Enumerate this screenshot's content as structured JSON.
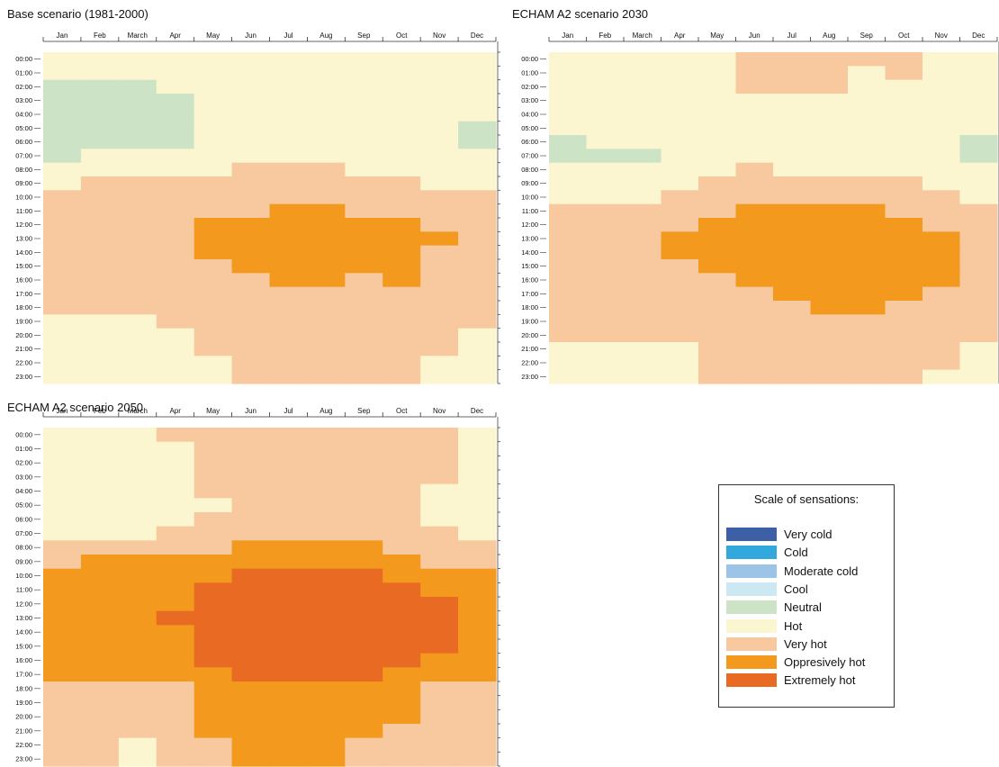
{
  "chart_data": [
    {
      "type": "heatmap",
      "title": "Base scenario (1981-2000)",
      "x_labels": [
        "Jan",
        "Feb",
        "March",
        "Apr",
        "May",
        "Jun",
        "Jul",
        "Aug",
        "Sep",
        "Oct",
        "Nov",
        "Dec"
      ],
      "y_labels": [
        "00:00",
        "01:00",
        "02:00",
        "03:00",
        "04:00",
        "05:00",
        "06:00",
        "07:00",
        "08:00",
        "09:00",
        "10:00",
        "11:00",
        "12:00",
        "13:00",
        "14:00",
        "15:00",
        "16:00",
        "17:00",
        "18:00",
        "19:00",
        "20:00",
        "21:00",
        "22:00",
        "23:00"
      ],
      "legend_ref": "legend.items",
      "grid": [
        [
          5,
          5,
          5,
          5,
          5,
          5,
          5,
          5,
          5,
          5,
          5,
          5
        ],
        [
          5,
          5,
          5,
          5,
          5,
          5,
          5,
          5,
          5,
          5,
          5,
          5
        ],
        [
          4,
          4,
          4,
          5,
          5,
          5,
          5,
          5,
          5,
          5,
          5,
          5
        ],
        [
          4,
          4,
          4,
          4,
          5,
          5,
          5,
          5,
          5,
          5,
          5,
          5
        ],
        [
          4,
          4,
          4,
          4,
          5,
          5,
          5,
          5,
          5,
          5,
          5,
          5
        ],
        [
          4,
          4,
          4,
          4,
          5,
          5,
          5,
          5,
          5,
          5,
          5,
          4
        ],
        [
          4,
          4,
          4,
          4,
          5,
          5,
          5,
          5,
          5,
          5,
          5,
          4
        ],
        [
          4,
          5,
          5,
          5,
          5,
          5,
          5,
          5,
          5,
          5,
          5,
          5
        ],
        [
          5,
          5,
          5,
          5,
          5,
          6,
          6,
          6,
          5,
          5,
          5,
          5
        ],
        [
          5,
          6,
          6,
          6,
          6,
          6,
          6,
          6,
          6,
          6,
          5,
          5
        ],
        [
          6,
          6,
          6,
          6,
          6,
          6,
          6,
          6,
          6,
          6,
          6,
          6
        ],
        [
          6,
          6,
          6,
          6,
          6,
          6,
          7,
          7,
          6,
          6,
          6,
          6
        ],
        [
          6,
          6,
          6,
          6,
          7,
          7,
          7,
          7,
          7,
          7,
          6,
          6
        ],
        [
          6,
          6,
          6,
          6,
          7,
          7,
          7,
          7,
          7,
          7,
          7,
          6
        ],
        [
          6,
          6,
          6,
          6,
          7,
          7,
          7,
          7,
          7,
          7,
          6,
          6
        ],
        [
          6,
          6,
          6,
          6,
          6,
          7,
          7,
          7,
          7,
          7,
          6,
          6
        ],
        [
          6,
          6,
          6,
          6,
          6,
          6,
          7,
          7,
          6,
          7,
          6,
          6
        ],
        [
          6,
          6,
          6,
          6,
          6,
          6,
          6,
          6,
          6,
          6,
          6,
          6
        ],
        [
          6,
          6,
          6,
          6,
          6,
          6,
          6,
          6,
          6,
          6,
          6,
          6
        ],
        [
          5,
          5,
          5,
          6,
          6,
          6,
          6,
          6,
          6,
          6,
          6,
          6
        ],
        [
          5,
          5,
          5,
          5,
          6,
          6,
          6,
          6,
          6,
          6,
          6,
          5
        ],
        [
          5,
          5,
          5,
          5,
          6,
          6,
          6,
          6,
          6,
          6,
          6,
          5
        ],
        [
          5,
          5,
          5,
          5,
          5,
          6,
          6,
          6,
          6,
          6,
          5,
          5
        ],
        [
          5,
          5,
          5,
          5,
          5,
          6,
          6,
          6,
          6,
          6,
          5,
          5
        ]
      ]
    },
    {
      "type": "heatmap",
      "title": "ECHAM A2 scenario 2030",
      "x_labels": [
        "Jan",
        "Feb",
        "March",
        "Apr",
        "May",
        "Jun",
        "Jul",
        "Aug",
        "Sep",
        "Oct",
        "Nov",
        "Dec"
      ],
      "y_labels": [
        "00:00",
        "01:00",
        "02:00",
        "03:00",
        "04:00",
        "05:00",
        "06:00",
        "07:00",
        "08:00",
        "09:00",
        "10:00",
        "11:00",
        "12:00",
        "13:00",
        "14:00",
        "15:00",
        "16:00",
        "17:00",
        "18:00",
        "19:00",
        "20:00",
        "21:00",
        "22:00",
        "23:00"
      ],
      "legend_ref": "legend.items",
      "grid": [
        [
          5,
          5,
          5,
          5,
          5,
          6,
          6,
          6,
          6,
          6,
          5,
          5
        ],
        [
          5,
          5,
          5,
          5,
          5,
          6,
          6,
          6,
          5,
          6,
          5,
          5
        ],
        [
          5,
          5,
          5,
          5,
          5,
          6,
          6,
          6,
          5,
          5,
          5,
          5
        ],
        [
          5,
          5,
          5,
          5,
          5,
          5,
          5,
          5,
          5,
          5,
          5,
          5
        ],
        [
          5,
          5,
          5,
          5,
          5,
          5,
          5,
          5,
          5,
          5,
          5,
          5
        ],
        [
          5,
          5,
          5,
          5,
          5,
          5,
          5,
          5,
          5,
          5,
          5,
          5
        ],
        [
          4,
          5,
          5,
          5,
          5,
          5,
          5,
          5,
          5,
          5,
          5,
          4
        ],
        [
          4,
          4,
          4,
          5,
          5,
          5,
          5,
          5,
          5,
          5,
          5,
          4
        ],
        [
          5,
          5,
          5,
          5,
          5,
          6,
          5,
          5,
          5,
          5,
          5,
          5
        ],
        [
          5,
          5,
          5,
          5,
          6,
          6,
          6,
          6,
          6,
          6,
          5,
          5
        ],
        [
          5,
          5,
          5,
          6,
          6,
          6,
          6,
          6,
          6,
          6,
          6,
          5
        ],
        [
          6,
          6,
          6,
          6,
          6,
          7,
          7,
          7,
          7,
          6,
          6,
          6
        ],
        [
          6,
          6,
          6,
          6,
          7,
          7,
          7,
          7,
          7,
          7,
          6,
          6
        ],
        [
          6,
          6,
          6,
          7,
          7,
          7,
          7,
          7,
          7,
          7,
          7,
          6
        ],
        [
          6,
          6,
          6,
          7,
          7,
          7,
          7,
          7,
          7,
          7,
          7,
          6
        ],
        [
          6,
          6,
          6,
          6,
          7,
          7,
          7,
          7,
          7,
          7,
          7,
          6
        ],
        [
          6,
          6,
          6,
          6,
          6,
          7,
          7,
          7,
          7,
          7,
          7,
          6
        ],
        [
          6,
          6,
          6,
          6,
          6,
          6,
          7,
          7,
          7,
          7,
          6,
          6
        ],
        [
          6,
          6,
          6,
          6,
          6,
          6,
          6,
          7,
          7,
          6,
          6,
          6
        ],
        [
          6,
          6,
          6,
          6,
          6,
          6,
          6,
          6,
          6,
          6,
          6,
          6
        ],
        [
          6,
          6,
          6,
          6,
          6,
          6,
          6,
          6,
          6,
          6,
          6,
          6
        ],
        [
          5,
          5,
          5,
          5,
          6,
          6,
          6,
          6,
          6,
          6,
          6,
          5
        ],
        [
          5,
          5,
          5,
          5,
          6,
          6,
          6,
          6,
          6,
          6,
          6,
          5
        ],
        [
          5,
          5,
          5,
          5,
          6,
          6,
          6,
          6,
          6,
          6,
          5,
          5
        ]
      ]
    },
    {
      "type": "heatmap",
      "title": "ECHAM A2 scenario 2050",
      "x_labels": [
        "Jan",
        "Feb",
        "March",
        "Apr",
        "May",
        "Jun",
        "Jul",
        "Aug",
        "Sep",
        "Oct",
        "Nov",
        "Dec"
      ],
      "y_labels": [
        "00:00",
        "01:00",
        "02:00",
        "03:00",
        "04:00",
        "05:00",
        "06:00",
        "07:00",
        "08:00",
        "09:00",
        "10:00",
        "11:00",
        "12:00",
        "13:00",
        "14:00",
        "15:00",
        "16:00",
        "17:00",
        "18:00",
        "19:00",
        "20:00",
        "21:00",
        "22:00",
        "23:00"
      ],
      "legend_ref": "legend.items",
      "grid": [
        [
          5,
          5,
          5,
          6,
          6,
          6,
          6,
          6,
          6,
          6,
          6,
          5
        ],
        [
          5,
          5,
          5,
          5,
          6,
          6,
          6,
          6,
          6,
          6,
          6,
          5
        ],
        [
          5,
          5,
          5,
          5,
          6,
          6,
          6,
          6,
          6,
          6,
          6,
          5
        ],
        [
          5,
          5,
          5,
          5,
          6,
          6,
          6,
          6,
          6,
          6,
          6,
          5
        ],
        [
          5,
          5,
          5,
          5,
          6,
          6,
          6,
          6,
          6,
          6,
          5,
          5
        ],
        [
          5,
          5,
          5,
          5,
          5,
          6,
          6,
          6,
          6,
          6,
          5,
          5
        ],
        [
          5,
          5,
          5,
          5,
          6,
          6,
          6,
          6,
          6,
          6,
          5,
          5
        ],
        [
          5,
          5,
          5,
          6,
          6,
          6,
          6,
          6,
          6,
          6,
          6,
          5
        ],
        [
          6,
          6,
          6,
          6,
          6,
          7,
          7,
          7,
          7,
          6,
          6,
          6
        ],
        [
          6,
          7,
          7,
          7,
          7,
          7,
          7,
          7,
          7,
          7,
          6,
          6
        ],
        [
          7,
          7,
          7,
          7,
          7,
          8,
          8,
          8,
          8,
          7,
          7,
          7
        ],
        [
          7,
          7,
          7,
          7,
          8,
          8,
          8,
          8,
          8,
          8,
          7,
          7
        ],
        [
          7,
          7,
          7,
          7,
          8,
          8,
          8,
          8,
          8,
          8,
          8,
          7
        ],
        [
          7,
          7,
          7,
          8,
          8,
          8,
          8,
          8,
          8,
          8,
          8,
          7
        ],
        [
          7,
          7,
          7,
          7,
          8,
          8,
          8,
          8,
          8,
          8,
          8,
          7
        ],
        [
          7,
          7,
          7,
          7,
          8,
          8,
          8,
          8,
          8,
          8,
          8,
          7
        ],
        [
          7,
          7,
          7,
          7,
          8,
          8,
          8,
          8,
          8,
          8,
          7,
          7
        ],
        [
          7,
          7,
          7,
          7,
          7,
          8,
          8,
          8,
          8,
          7,
          7,
          7
        ],
        [
          6,
          6,
          6,
          6,
          7,
          7,
          7,
          7,
          7,
          7,
          6,
          6
        ],
        [
          6,
          6,
          6,
          6,
          7,
          7,
          7,
          7,
          7,
          7,
          6,
          6
        ],
        [
          6,
          6,
          6,
          6,
          7,
          7,
          7,
          7,
          7,
          7,
          6,
          6
        ],
        [
          6,
          6,
          6,
          6,
          7,
          7,
          7,
          7,
          7,
          6,
          6,
          6
        ],
        [
          6,
          6,
          5,
          6,
          6,
          7,
          7,
          7,
          6,
          6,
          6,
          6
        ],
        [
          6,
          6,
          5,
          6,
          6,
          7,
          7,
          7,
          6,
          6,
          6,
          6
        ]
      ]
    }
  ],
  "legend": {
    "title": "Scale of sensations:",
    "items": [
      {
        "label": "Very cold",
        "color": "#3d5fa6"
      },
      {
        "label": "Cold",
        "color": "#33a8dc"
      },
      {
        "label": "Moderate cold",
        "color": "#9cc4e6"
      },
      {
        "label": "Cool",
        "color": "#cbe8f3"
      },
      {
        "label": "Neutral",
        "color": "#cde3c5"
      },
      {
        "label": "Hot",
        "color": "#fbf6d0"
      },
      {
        "label": "Very hot",
        "color": "#f8c99e"
      },
      {
        "label": "Oppresively hot",
        "color": "#f39a1e"
      },
      {
        "label": "Extremely hot",
        "color": "#e96b23"
      }
    ]
  }
}
